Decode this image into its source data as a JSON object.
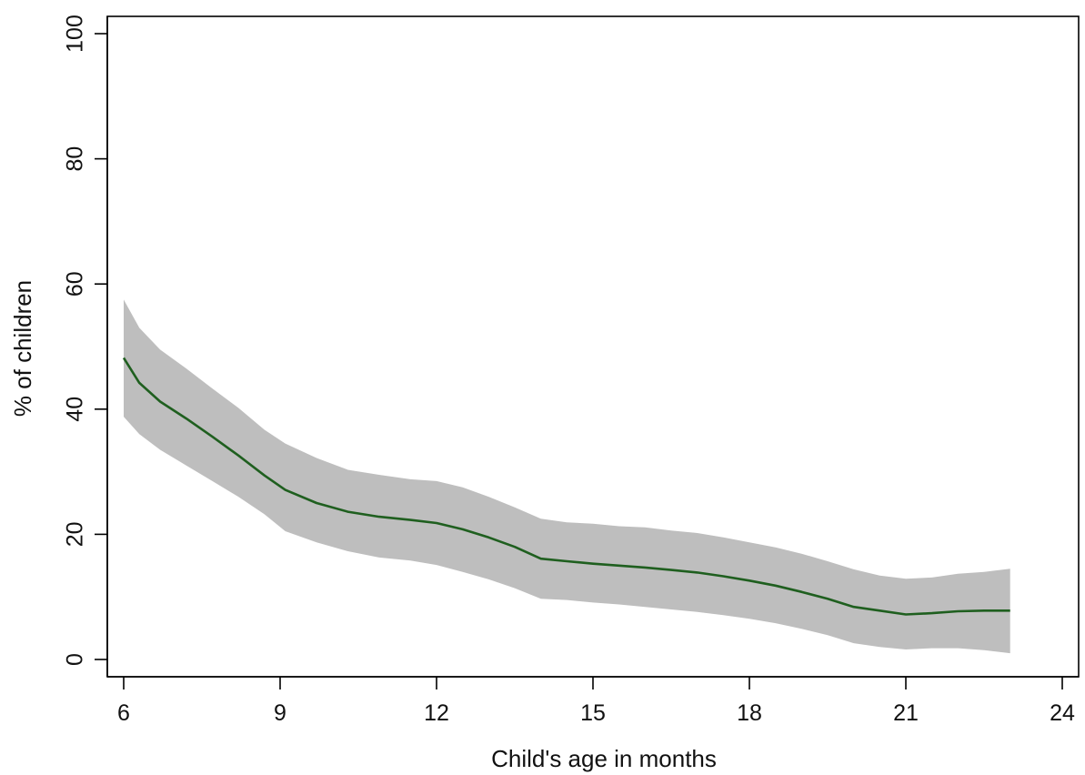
{
  "chart_data": {
    "type": "area",
    "title": "",
    "xlabel": "Child's age in months",
    "ylabel": "% of children",
    "xlim": [
      6,
      24
    ],
    "ylim": [
      0,
      100
    ],
    "x_ticks": [
      6,
      9,
      12,
      15,
      18,
      21,
      24
    ],
    "y_ticks": [
      0,
      20,
      40,
      60,
      80,
      100
    ],
    "x_tick_labels": [
      "6",
      "9",
      "12",
      "15",
      "18",
      "21",
      "24"
    ],
    "y_tick_labels": [
      "0",
      "20",
      "40",
      "60",
      "80",
      "100"
    ],
    "grid": false,
    "legend": "none",
    "x": [
      6,
      6.3,
      6.7,
      7.2,
      7.7,
      8.2,
      8.7,
      9.1,
      9.7,
      10.3,
      10.9,
      11.5,
      12,
      12.5,
      13,
      13.5,
      14,
      14.5,
      15,
      15.5,
      16,
      16.5,
      17,
      17.5,
      18,
      18.5,
      19,
      19.5,
      20,
      20.5,
      21,
      21.5,
      22,
      22.5,
      23
    ],
    "series": [
      {
        "type": "line",
        "color": "#1f5f1f",
        "values": [
          48.2,
          44.2,
          41.2,
          38.5,
          35.6,
          32.6,
          29.4,
          27.1,
          25.0,
          23.6,
          22.8,
          22.3,
          21.8,
          20.8,
          19.5,
          18.0,
          16.1,
          15.7,
          15.3,
          15.0,
          14.7,
          14.3,
          13.9,
          13.3,
          12.6,
          11.8,
          10.8,
          9.7,
          8.4,
          7.8,
          7.2,
          7.4,
          7.7,
          7.8,
          7.8
        ]
      },
      {
        "type": "band",
        "role": "confidence interval",
        "color": "#bebebe",
        "upper": [
          57.5,
          53.0,
          49.5,
          46.5,
          43.3,
          40.2,
          36.7,
          34.5,
          32.2,
          30.3,
          29.5,
          28.8,
          28.5,
          27.5,
          26.0,
          24.3,
          22.5,
          21.9,
          21.7,
          21.3,
          21.1,
          20.6,
          20.2,
          19.5,
          18.7,
          17.9,
          16.9,
          15.7,
          14.4,
          13.4,
          12.9,
          13.1,
          13.7,
          14.0,
          14.5
        ],
        "lower": [
          38.8,
          36.0,
          33.5,
          31.0,
          28.5,
          26.0,
          23.2,
          20.5,
          18.7,
          17.3,
          16.3,
          15.8,
          15.1,
          14.0,
          12.8,
          11.4,
          9.7,
          9.5,
          9.1,
          8.8,
          8.4,
          8.0,
          7.6,
          7.1,
          6.5,
          5.8,
          4.9,
          3.9,
          2.6,
          2.0,
          1.6,
          1.8,
          1.8,
          1.5,
          1.0
        ]
      }
    ]
  }
}
